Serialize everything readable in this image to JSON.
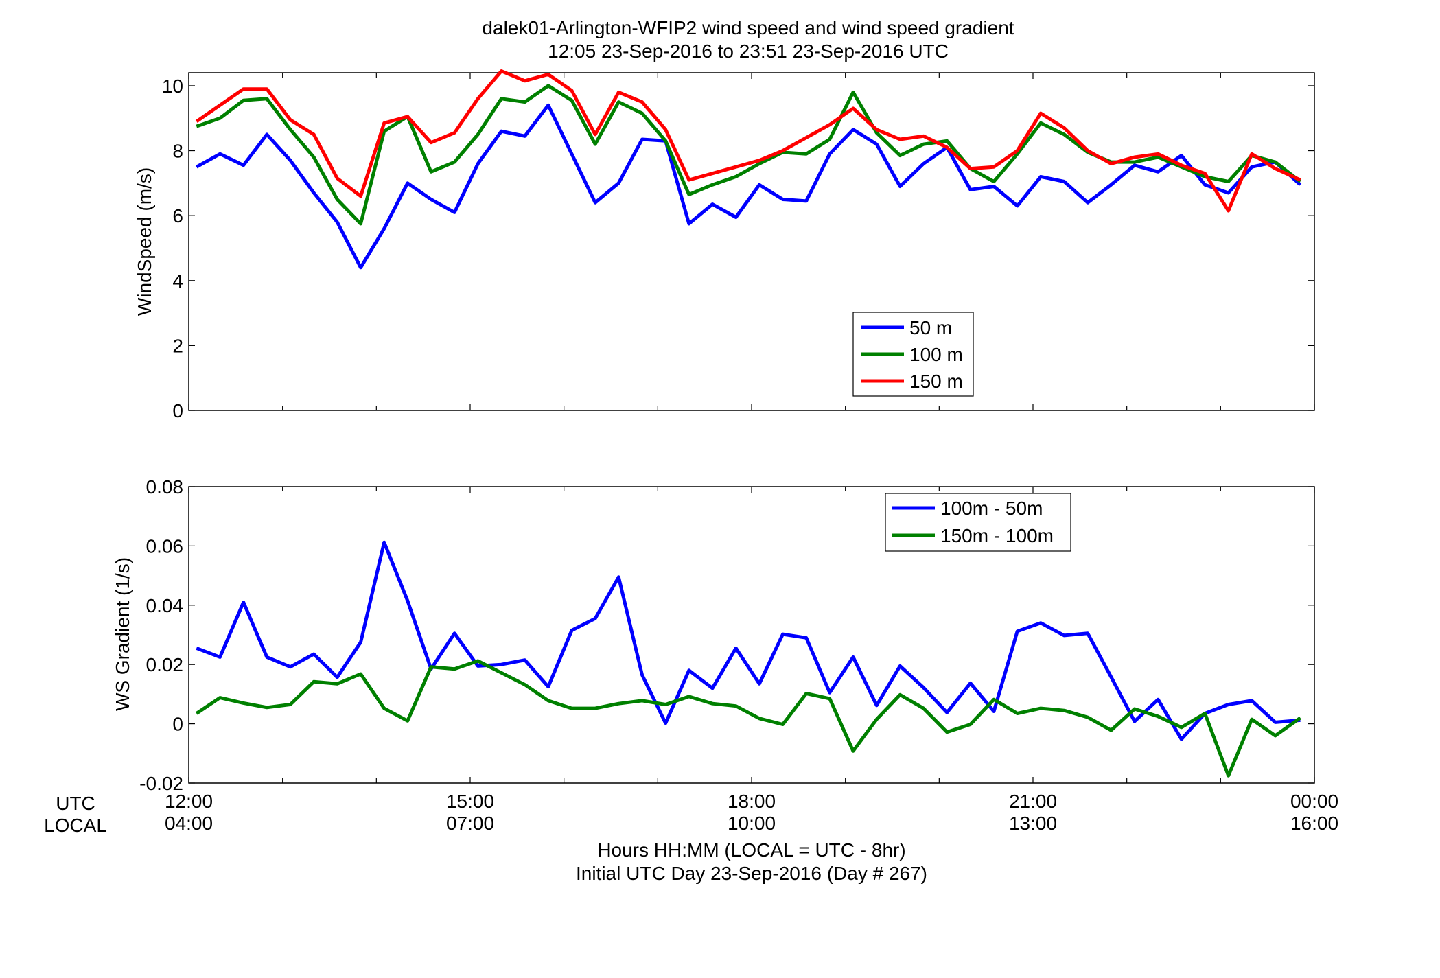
{
  "figure": {
    "title_line1": "dalek01-Arlington-WFIP2  wind speed and wind speed gradient",
    "title_line2": "12:05 23-Sep-2016 to 23:51 23-Sep-2016  UTC",
    "xlabel_line1": "Hours HH:MM  (LOCAL = UTC - 8hr)",
    "xlabel_line2": "Initial UTC Day 23-Sep-2016 (Day # 267)",
    "row_label_utc": "UTC",
    "row_label_local": "LOCAL"
  },
  "chart_data": [
    {
      "type": "line",
      "ylabel": "WindSpeed (m/s)",
      "xlim": [
        12,
        24
      ],
      "ylim": [
        0,
        10.4
      ],
      "yticks": [
        0,
        2,
        4,
        6,
        8,
        10
      ],
      "ytick_labels": [
        "0",
        "2",
        "4",
        "6",
        "8",
        "10"
      ],
      "xticks": [
        12,
        15,
        18,
        21,
        24
      ],
      "grid": false,
      "legend_position": "lower-center",
      "x": [
        12.083,
        12.333,
        12.583,
        12.833,
        13.083,
        13.333,
        13.583,
        13.833,
        14.083,
        14.333,
        14.583,
        14.833,
        15.083,
        15.333,
        15.583,
        15.833,
        16.083,
        16.333,
        16.583,
        16.833,
        17.083,
        17.333,
        17.583,
        17.833,
        18.083,
        18.333,
        18.583,
        18.833,
        19.083,
        19.333,
        19.583,
        19.833,
        20.083,
        20.333,
        20.583,
        20.833,
        21.083,
        21.333,
        21.583,
        21.833,
        22.083,
        22.333,
        22.583,
        22.833,
        23.083,
        23.333,
        23.583,
        23.85
      ],
      "series": [
        {
          "name": "50 m",
          "color": "#0000ff",
          "values": [
            7.5,
            7.9,
            7.55,
            8.5,
            7.7,
            6.7,
            5.8,
            4.4,
            5.6,
            7.0,
            6.5,
            6.1,
            7.6,
            8.6,
            8.45,
            9.4,
            7.9,
            6.4,
            7.0,
            8.35,
            8.3,
            5.75,
            6.35,
            5.95,
            6.95,
            6.5,
            6.45,
            7.9,
            8.65,
            8.2,
            6.9,
            7.6,
            8.1,
            6.8,
            6.9,
            6.3,
            7.2,
            7.05,
            6.4,
            6.95,
            7.55,
            7.35,
            7.85,
            6.95,
            6.7,
            7.5,
            7.65,
            6.95
          ]
        },
        {
          "name": "100 m",
          "color": "#008000",
          "values": [
            8.75,
            9.0,
            9.55,
            9.6,
            8.65,
            7.8,
            6.5,
            5.75,
            8.6,
            9.05,
            7.35,
            7.65,
            8.5,
            9.6,
            9.5,
            10.0,
            9.55,
            8.2,
            9.5,
            9.15,
            8.3,
            6.65,
            6.95,
            7.2,
            7.6,
            7.95,
            7.9,
            8.35,
            9.8,
            8.55,
            7.85,
            8.2,
            8.3,
            7.45,
            7.05,
            7.9,
            8.85,
            8.5,
            7.95,
            7.65,
            7.65,
            7.8,
            7.5,
            7.2,
            7.05,
            7.85,
            7.65,
            7.05
          ]
        },
        {
          "name": "150 m",
          "color": "#ff0000",
          "values": [
            8.9,
            9.4,
            9.9,
            9.9,
            8.95,
            8.5,
            7.15,
            6.6,
            8.85,
            9.05,
            8.25,
            8.55,
            9.6,
            10.45,
            10.15,
            10.35,
            9.85,
            8.5,
            9.8,
            9.5,
            8.65,
            7.1,
            7.3,
            7.5,
            7.7,
            8.0,
            8.4,
            8.8,
            9.3,
            8.65,
            8.35,
            8.45,
            8.1,
            7.45,
            7.5,
            8.0,
            9.15,
            8.7,
            8.0,
            7.6,
            7.8,
            7.9,
            7.55,
            7.3,
            6.15,
            7.9,
            7.45,
            7.1
          ]
        }
      ]
    },
    {
      "type": "line",
      "ylabel": "WS Gradient (1/s)",
      "xlim": [
        12,
        24
      ],
      "ylim": [
        -0.02,
        0.08
      ],
      "yticks": [
        -0.02,
        0,
        0.02,
        0.04,
        0.06,
        0.08
      ],
      "ytick_labels": [
        "-0.02",
        "0",
        "0.02",
        "0.04",
        "0.06",
        "0.08"
      ],
      "xticks": [
        12,
        15,
        18,
        21,
        24
      ],
      "xtick_labels_utc": [
        "12:00",
        "15:00",
        "18:00",
        "21:00",
        "00:00"
      ],
      "xtick_labels_local": [
        "04:00",
        "07:00",
        "10:00",
        "13:00",
        "16:00"
      ],
      "grid": false,
      "legend_position": "top-right",
      "x": [
        12.083,
        12.333,
        12.583,
        12.833,
        13.083,
        13.333,
        13.583,
        13.833,
        14.083,
        14.333,
        14.583,
        14.833,
        15.083,
        15.333,
        15.583,
        15.833,
        16.083,
        16.333,
        16.583,
        16.833,
        17.083,
        17.333,
        17.583,
        17.833,
        18.083,
        18.333,
        18.583,
        18.833,
        19.083,
        19.333,
        19.583,
        19.833,
        20.083,
        20.333,
        20.583,
        20.833,
        21.083,
        21.333,
        21.583,
        21.833,
        22.083,
        22.333,
        22.583,
        22.833,
        23.083,
        23.333,
        23.583,
        23.85
      ],
      "series": [
        {
          "name": "100m - 50m",
          "color": "#0000ff",
          "values": [
            0.0255,
            0.0225,
            0.041,
            0.0225,
            0.0192,
            0.0235,
            0.0157,
            0.0275,
            0.0612,
            0.0415,
            0.0185,
            0.0305,
            0.0195,
            0.02,
            0.0215,
            0.0125,
            0.0315,
            0.0355,
            0.0495,
            0.0165,
            0.0002,
            0.018,
            0.012,
            0.0255,
            0.0135,
            0.0302,
            0.029,
            0.0105,
            0.0225,
            0.0062,
            0.0195,
            0.0122,
            0.0038,
            0.0137,
            0.0042,
            0.0312,
            0.034,
            0.0298,
            0.0305,
            0.0158,
            0.0008,
            0.0082,
            -0.0052,
            0.0035,
            0.0065,
            0.0078,
            0.0005,
            0.0012
          ]
        },
        {
          "name": "150m - 100m",
          "color": "#008000",
          "values": [
            0.0035,
            0.0088,
            0.007,
            0.0055,
            0.0065,
            0.0142,
            0.0135,
            0.0168,
            0.0052,
            0.001,
            0.0192,
            0.0185,
            0.0212,
            0.0172,
            0.0132,
            0.0078,
            0.0052,
            0.0052,
            0.0068,
            0.0078,
            0.0065,
            0.0092,
            0.0068,
            0.006,
            0.0018,
            -0.0002,
            0.0102,
            0.0085,
            -0.0092,
            0.0015,
            0.0098,
            0.0052,
            -0.0028,
            -0.0002,
            0.0082,
            0.0035,
            0.0052,
            0.0045,
            0.0022,
            -0.0022,
            0.005,
            0.0025,
            -0.0012,
            0.0035,
            -0.0175,
            0.0015,
            -0.004,
            0.002
          ]
        }
      ]
    }
  ]
}
